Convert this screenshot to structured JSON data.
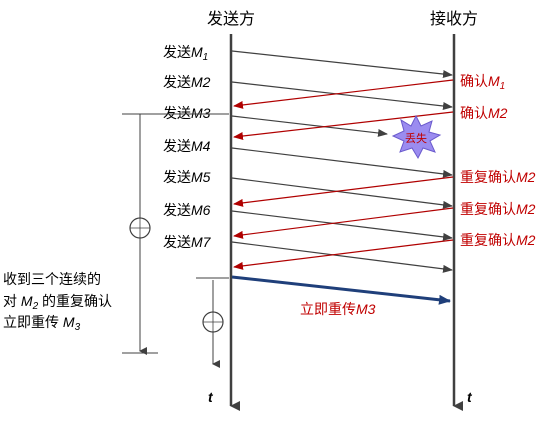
{
  "sender": {
    "title": "发送方"
  },
  "receiver": {
    "title": "接收方"
  },
  "send_labels": [
    {
      "prefix": "发送",
      "msg": "M",
      "sub": "1"
    },
    {
      "prefix": "发送",
      "msg": "M2",
      "sub": ""
    },
    {
      "prefix": "发送",
      "msg": "M3",
      "sub": ""
    },
    {
      "prefix": "发送",
      "msg": "M4",
      "sub": ""
    },
    {
      "prefix": "发送",
      "msg": "M5",
      "sub": ""
    },
    {
      "prefix": "发送",
      "msg": "M6",
      "sub": ""
    },
    {
      "prefix": "发送",
      "msg": "M7",
      "sub": ""
    }
  ],
  "ack_labels": [
    {
      "prefix": "确认",
      "msg": "M",
      "sub": "1"
    },
    {
      "prefix": "确认",
      "msg": "M2",
      "sub": ""
    },
    {
      "prefix": "重复确认",
      "msg": "M2",
      "sub": ""
    },
    {
      "prefix": "重复确认",
      "msg": "M2",
      "sub": ""
    },
    {
      "prefix": "重复确认",
      "msg": "M2",
      "sub": ""
    }
  ],
  "lost": {
    "text": "丢失"
  },
  "note": {
    "line1": "收到三个连续的",
    "line2_pre": "对 ",
    "line2_msg": "M",
    "line2_sub": "2",
    "line2_post": " 的重复确认",
    "line3_pre": "立即重传 ",
    "line3_msg": "M",
    "line3_sub": "3"
  },
  "resend": {
    "prefix": "立即重传",
    "msg": "M3"
  },
  "time_label": "t",
  "colors": {
    "send_arrow": "#404040",
    "ack_arrow": "#b00000",
    "resend_arrow": "#1f3f7a",
    "ack_text": "#c00000",
    "burst_fill": "#9b8cf0"
  }
}
